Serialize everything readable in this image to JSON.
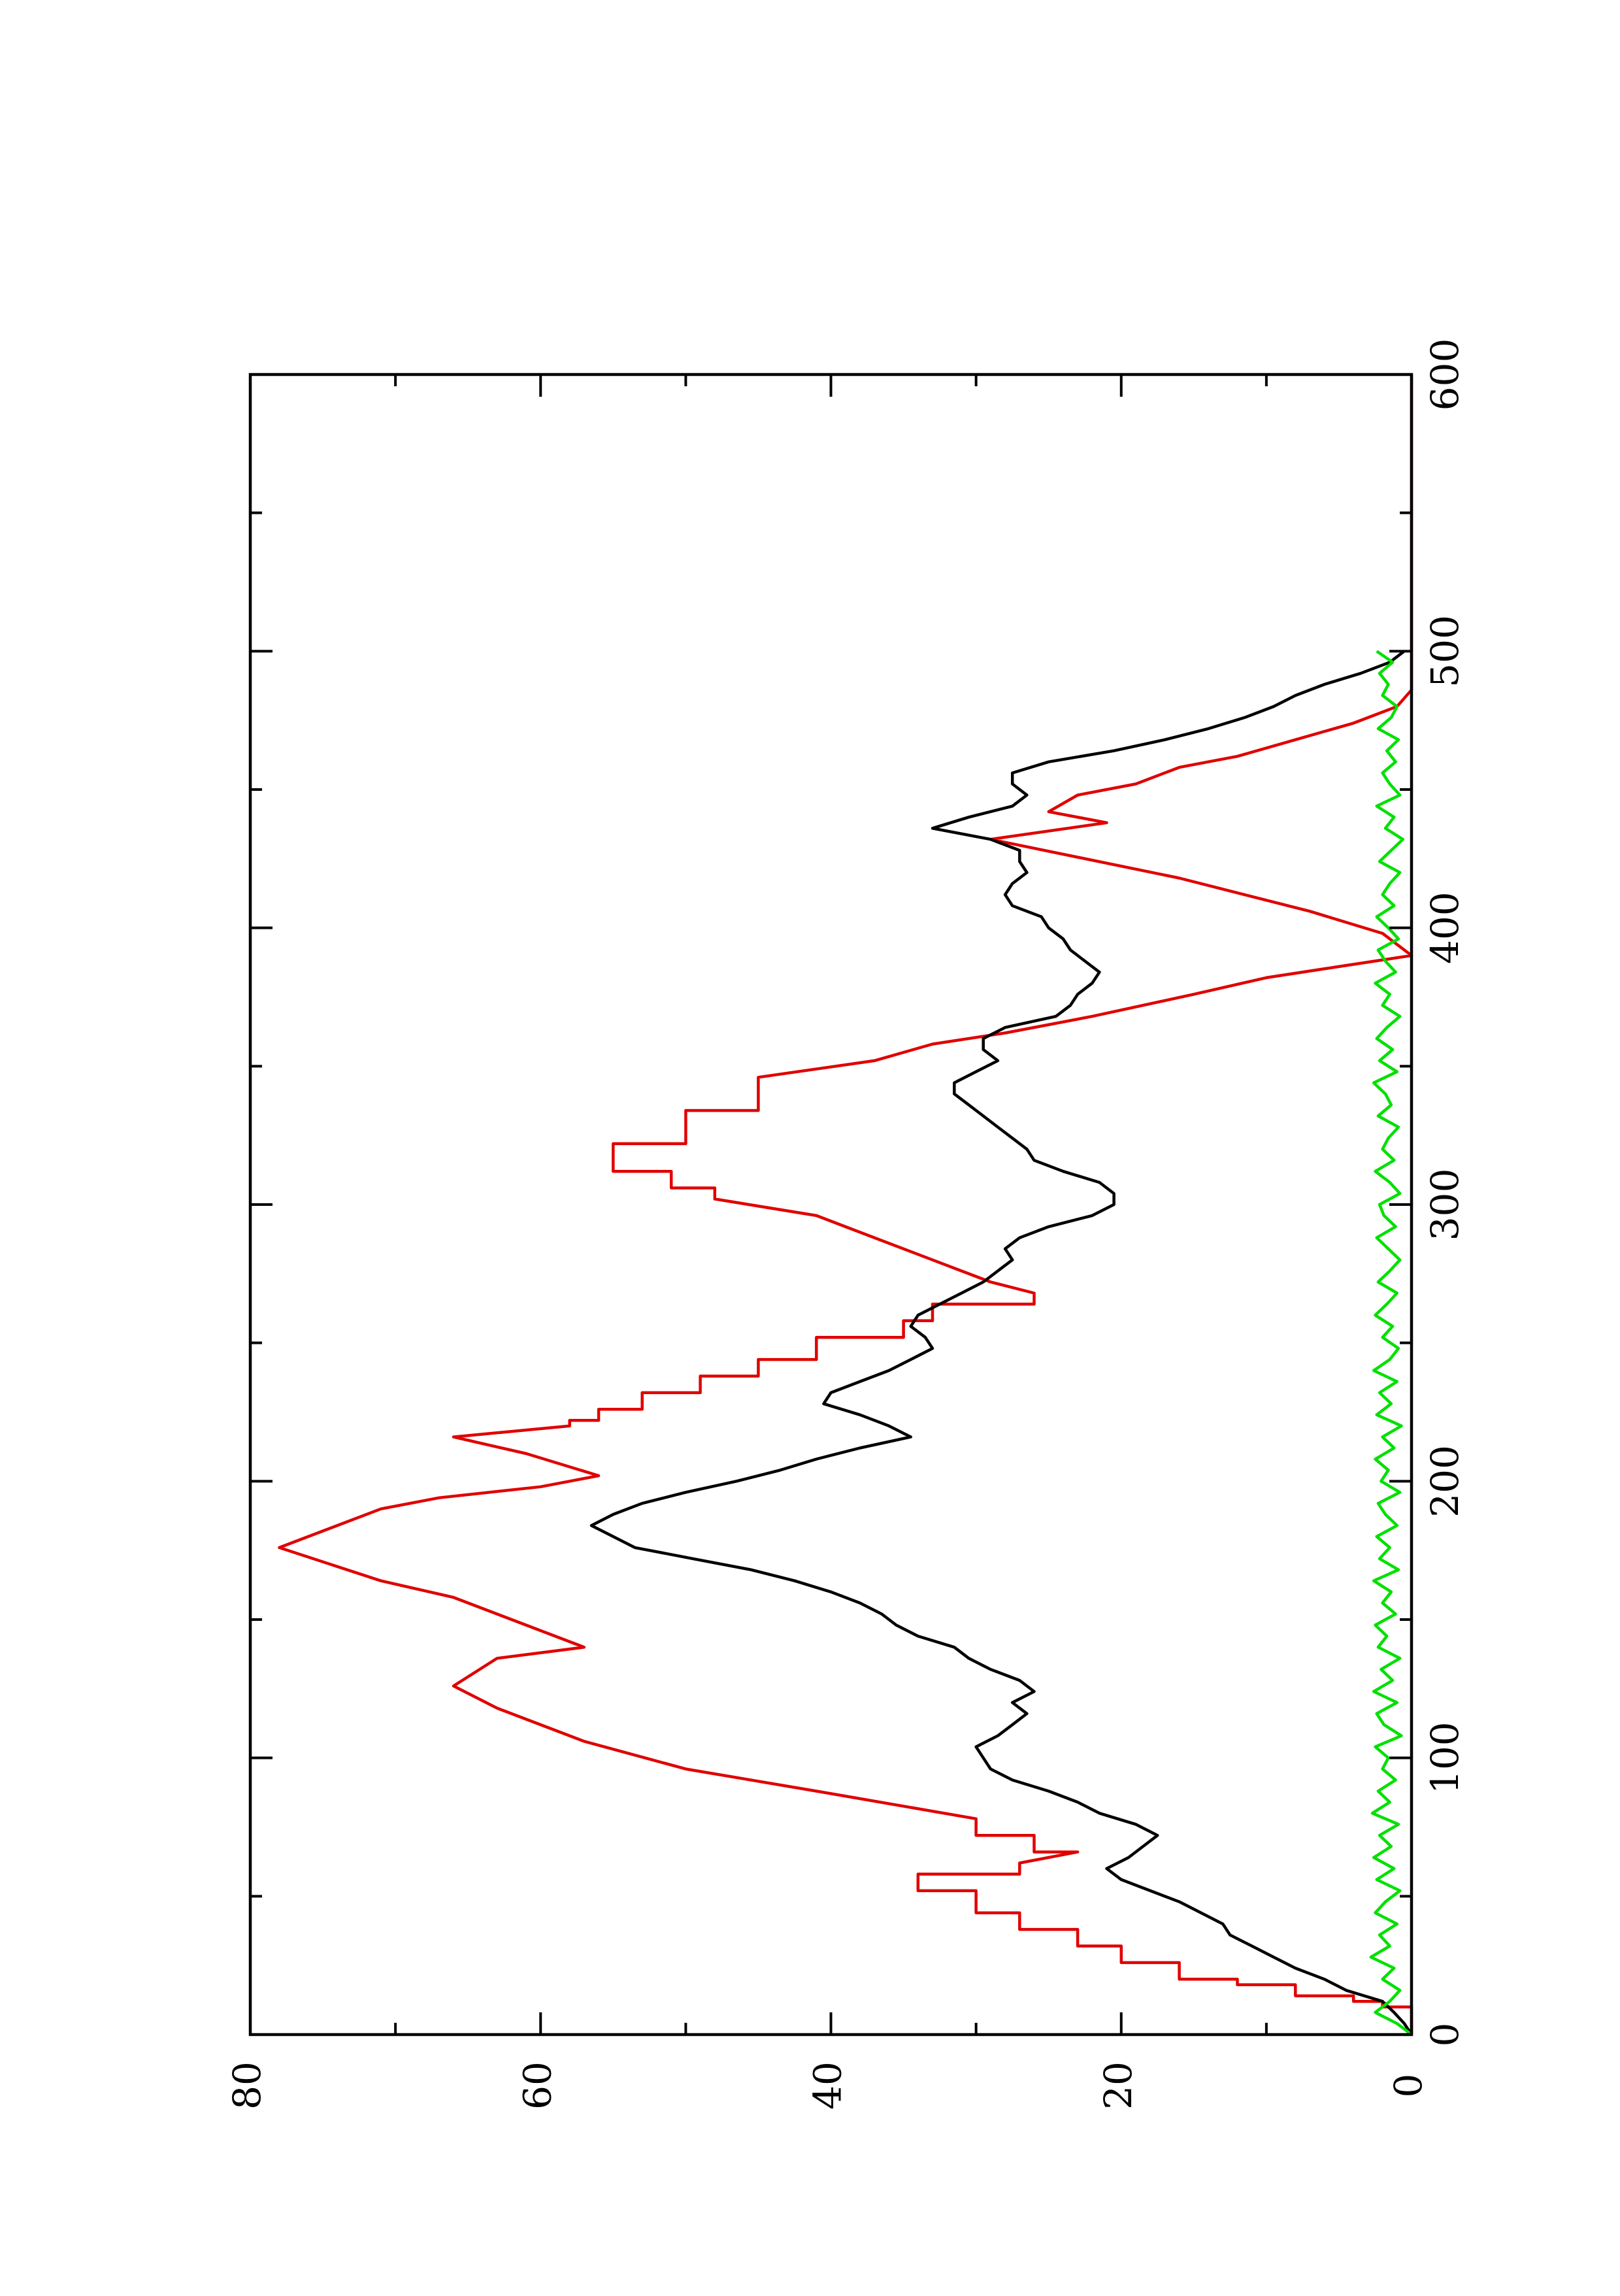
{
  "chart_data": {
    "type": "line",
    "orientation": "rotated-90-ccw",
    "xlim": [
      0,
      600
    ],
    "ylim": [
      0,
      80
    ],
    "x_ticks_major": [
      0,
      100,
      200,
      300,
      400,
      500,
      600
    ],
    "x_ticks_minor": [
      50,
      150,
      250,
      350,
      450,
      550
    ],
    "y_ticks_major": [
      0,
      20,
      40,
      60,
      80
    ],
    "y_ticks_minor": [
      10,
      30,
      50,
      70
    ],
    "x_tick_labels": [
      "0",
      "100",
      "200",
      "300",
      "400",
      "500",
      "600"
    ],
    "y_tick_labels": [
      "0",
      "20",
      "40",
      "60",
      "80"
    ],
    "grid": false,
    "legend": "none",
    "series": [
      {
        "color": "#e00000",
        "style": "step",
        "x": [
          0,
          10,
          10,
          12,
          12,
          14,
          14,
          18,
          18,
          20,
          20,
          26,
          26,
          32,
          32,
          38,
          38,
          44,
          44,
          52,
          52,
          58,
          58,
          62,
          66,
          66,
          72,
          72,
          78,
          88,
          88,
          96,
          96,
          106,
          106,
          118,
          118,
          126,
          126,
          136,
          136,
          140,
          140,
          152,
          152,
          158,
          158,
          164,
          164,
          176,
          176,
          190,
          190,
          194,
          194,
          198,
          198,
          202,
          202,
          210,
          210,
          216,
          216,
          220,
          222,
          222,
          226,
          226,
          232,
          232,
          238,
          238,
          244,
          244,
          252,
          252,
          258,
          258,
          264,
          264,
          268,
          272,
          272,
          276,
          276,
          280,
          280,
          292,
          292,
          296,
          296,
          302,
          306,
          306,
          312,
          312,
          322,
          322,
          334,
          334,
          346,
          352,
          352,
          358,
          358,
          362,
          362,
          368,
          368,
          376,
          376,
          382,
          382,
          386,
          386,
          390,
          390,
          398,
          398,
          406,
          406,
          418,
          418,
          432,
          432,
          438,
          438,
          442,
          442,
          448,
          448,
          452,
          452,
          458,
          458,
          462,
          462,
          468,
          468,
          474,
          474,
          480,
          480,
          486,
          486,
          492,
          492,
          600
        ],
        "y": [
          0,
          0,
          2,
          2,
          4,
          4,
          8,
          8,
          12,
          12,
          16,
          16,
          20,
          20,
          23,
          23,
          27,
          27,
          30,
          30,
          34,
          34,
          27,
          27,
          23,
          26,
          26,
          30,
          30,
          41,
          41,
          50,
          50,
          57,
          57,
          63,
          63,
          66,
          66,
          63,
          63,
          57,
          57,
          63,
          63,
          66,
          66,
          71,
          71,
          78,
          78,
          71,
          71,
          67,
          67,
          60,
          60,
          56,
          56,
          61,
          61,
          66,
          66,
          58,
          58,
          56,
          56,
          53,
          53,
          49,
          49,
          45,
          45,
          41,
          41,
          35,
          35,
          33,
          33,
          26,
          26,
          29,
          29,
          31,
          31,
          33,
          33,
          39,
          39,
          41,
          41,
          48,
          48,
          51,
          51,
          55,
          55,
          50,
          50,
          45,
          45,
          37,
          37,
          33,
          33,
          28,
          28,
          22,
          22,
          15,
          15,
          10,
          10,
          5,
          5,
          0,
          0,
          2,
          2,
          7,
          7,
          16,
          16,
          29,
          29,
          21,
          21,
          25,
          25,
          23,
          23,
          19,
          19,
          16,
          16,
          12,
          12,
          8,
          8,
          4,
          4,
          1,
          1,
          0,
          0,
          0,
          0,
          0
        ]
      },
      {
        "color": "#000000",
        "style": "line",
        "x": [
          0,
          4,
          8,
          12,
          16,
          20,
          24,
          28,
          32,
          36,
          40,
          44,
          48,
          52,
          56,
          60,
          64,
          68,
          72,
          76,
          80,
          84,
          88,
          92,
          96,
          100,
          104,
          108,
          112,
          116,
          120,
          124,
          128,
          132,
          136,
          140,
          144,
          148,
          152,
          156,
          160,
          164,
          168,
          172,
          176,
          180,
          184,
          188,
          192,
          196,
          200,
          204,
          208,
          212,
          216,
          220,
          224,
          228,
          232,
          236,
          240,
          244,
          248,
          252,
          256,
          260,
          264,
          268,
          272,
          276,
          280,
          284,
          288,
          292,
          296,
          300,
          304,
          308,
          312,
          316,
          320,
          324,
          328,
          332,
          336,
          340,
          344,
          348,
          352,
          356,
          360,
          364,
          368,
          372,
          376,
          380,
          384,
          388,
          392,
          396,
          400,
          404,
          408,
          412,
          416,
          420,
          424,
          428,
          432,
          436,
          440,
          444,
          448,
          452,
          456,
          460,
          464,
          468,
          472,
          476,
          480,
          484,
          488,
          492,
          496,
          500
        ],
        "y": [
          0,
          0.5,
          1.2,
          2.0,
          4.5,
          6.0,
          8.0,
          9.5,
          11.0,
          12.5,
          13.0,
          14.5,
          16.0,
          18.0,
          20.0,
          21.0,
          19.5,
          18.5,
          17.5,
          19.0,
          21.5,
          23.0,
          25.0,
          27.5,
          29.0,
          29.5,
          30.0,
          28.5,
          27.5,
          26.5,
          27.5,
          26.0,
          27.0,
          29.0,
          30.5,
          31.5,
          34.0,
          35.5,
          36.5,
          38.0,
          40.0,
          42.5,
          45.5,
          49.5,
          53.5,
          55.0,
          56.5,
          55.0,
          53.0,
          50.0,
          46.5,
          43.5,
          41.0,
          38.0,
          34.5,
          36.0,
          38.0,
          40.5,
          40.0,
          38.0,
          36.0,
          34.5,
          33.0,
          33.5,
          34.5,
          34.0,
          32.5,
          31.0,
          29.5,
          28.5,
          27.5,
          28.0,
          27.0,
          25.0,
          22.0,
          20.5,
          20.5,
          21.5,
          24.0,
          26.0,
          26.5,
          27.5,
          28.5,
          29.5,
          30.5,
          31.5,
          31.5,
          30.0,
          28.5,
          29.5,
          29.5,
          28.0,
          24.5,
          23.5,
          23.0,
          22.0,
          21.5,
          22.5,
          23.5,
          24.0,
          25.0,
          25.5,
          27.5,
          28.0,
          27.5,
          26.5,
          27.0,
          27.0,
          29.0,
          33.0,
          30.5,
          27.5,
          26.5,
          27.5,
          27.5,
          25.0,
          20.5,
          17.0,
          14.0,
          11.5,
          9.5,
          8.0,
          6.0,
          3.5,
          1.5,
          0.5
        ]
      },
      {
        "color": "#00e000",
        "style": "line",
        "x": [
          0,
          4,
          8,
          12,
          16,
          20,
          24,
          28,
          32,
          36,
          40,
          44,
          48,
          52,
          56,
          60,
          64,
          68,
          72,
          76,
          80,
          84,
          88,
          92,
          96,
          100,
          104,
          108,
          112,
          116,
          120,
          124,
          128,
          132,
          136,
          140,
          144,
          148,
          152,
          156,
          160,
          164,
          168,
          172,
          176,
          180,
          184,
          188,
          192,
          196,
          200,
          204,
          208,
          212,
          216,
          220,
          224,
          228,
          232,
          236,
          240,
          244,
          248,
          252,
          256,
          260,
          264,
          268,
          272,
          276,
          280,
          284,
          288,
          292,
          296,
          300,
          304,
          308,
          312,
          316,
          320,
          324,
          328,
          332,
          336,
          340,
          344,
          348,
          352,
          356,
          360,
          364,
          368,
          372,
          376,
          380,
          384,
          388,
          392,
          396,
          400,
          404,
          408,
          412,
          416,
          420,
          424,
          428,
          432,
          436,
          440,
          444,
          448,
          452,
          456,
          460,
          464,
          468,
          472,
          476,
          480,
          484,
          488,
          492,
          496,
          500
        ],
        "y": [
          0,
          1.0,
          2.5,
          1.5,
          0.8,
          2.0,
          1.2,
          2.8,
          1.5,
          2.2,
          1.0,
          2.5,
          1.8,
          0.8,
          2.4,
          1.2,
          2.6,
          1.4,
          2.2,
          0.9,
          2.7,
          1.5,
          2.3,
          1.1,
          2.0,
          1.6,
          2.5,
          0.7,
          1.9,
          2.4,
          1.0,
          2.6,
          1.3,
          2.1,
          0.8,
          2.3,
          1.7,
          2.5,
          1.1,
          2.0,
          1.4,
          2.6,
          0.9,
          2.2,
          1.5,
          2.4,
          1.0,
          1.8,
          2.3,
          0.8,
          2.1,
          1.6,
          2.5,
          1.2,
          2.0,
          0.7,
          2.4,
          1.4,
          2.2,
          1.0,
          2.6,
          1.5,
          0.9,
          2.0,
          1.3,
          2.5,
          1.7,
          1.0,
          2.3,
          1.5,
          0.8,
          1.6,
          2.4,
          1.1,
          1.9,
          2.2,
          0.8,
          1.5,
          2.5,
          1.2,
          2.0,
          1.6,
          0.9,
          2.3,
          1.4,
          1.8,
          2.6,
          1.0,
          2.2,
          1.3,
          2.4,
          1.7,
          0.8,
          2.0,
          1.5,
          2.5,
          1.1,
          1.8,
          2.3,
          0.9,
          1.6,
          2.4,
          1.2,
          2.0,
          1.5,
          0.8,
          2.2,
          1.4,
          0.6,
          1.8,
          1.2,
          2.4,
          0.8,
          1.5,
          2.0,
          1.1,
          1.7,
          0.9,
          2.3,
          1.4,
          1.0,
          2.0,
          1.6,
          2.2,
          1.3,
          2.4
        ]
      }
    ]
  }
}
